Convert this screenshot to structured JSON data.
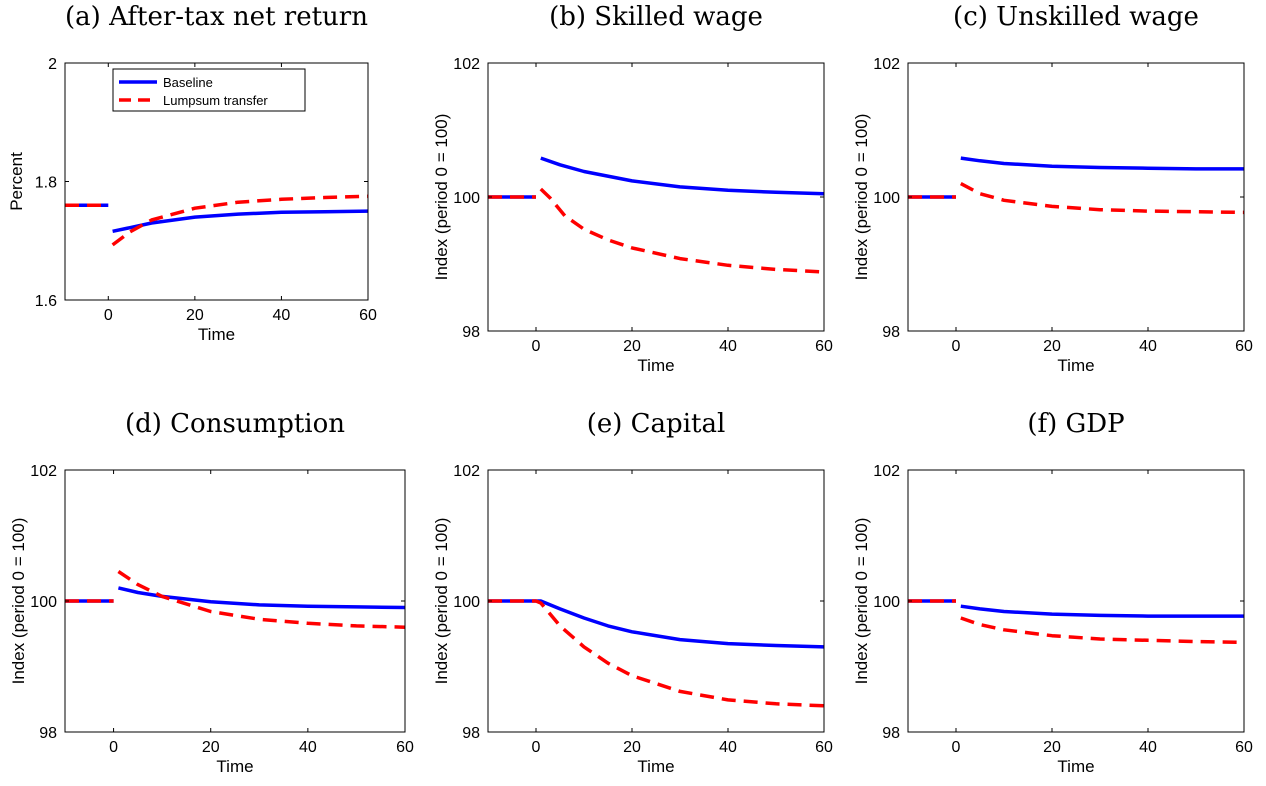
{
  "figure": {
    "legend": {
      "placement": "top-center",
      "panel": 0,
      "entries": [
        "Baseline",
        "Lumpsum transfer"
      ]
    }
  },
  "colors": {
    "baseline": "#0000FF",
    "lumpsum": "#FF0000",
    "axis": "#000000"
  },
  "chart_data": [
    {
      "type": "line",
      "title": "(a) After-tax net return",
      "xlabel": "Time",
      "ylabel": "Percent",
      "xlim": [
        -10,
        60
      ],
      "ylim": [
        1.6,
        2
      ],
      "xticks": [
        0,
        20,
        40,
        60
      ],
      "yticks": [
        1.6,
        1.8,
        2
      ],
      "ytick_labels": [
        "1.6",
        "1.8",
        "2"
      ],
      "grid": false,
      "series": [
        {
          "name": "Baseline",
          "style": "solid",
          "segments": [
            {
              "x": [
                -10,
                0
              ],
              "y": [
                1.76,
                1.76
              ]
            },
            {
              "x": [
                1,
                5,
                10,
                20,
                30,
                40,
                50,
                60
              ],
              "y": [
                1.716,
                1.722,
                1.73,
                1.74,
                1.745,
                1.748,
                1.749,
                1.75
              ]
            }
          ]
        },
        {
          "name": "Lumpsum transfer",
          "style": "dashed",
          "segments": [
            {
              "x": [
                -10,
                0
              ],
              "y": [
                1.76,
                1.76
              ]
            },
            {
              "x": [
                1,
                5,
                10,
                20,
                30,
                40,
                50,
                60
              ],
              "y": [
                1.693,
                1.715,
                1.735,
                1.755,
                1.765,
                1.77,
                1.773,
                1.775
              ]
            }
          ]
        }
      ]
    },
    {
      "type": "line",
      "title": "(b) Skilled wage",
      "xlabel": "Time",
      "ylabel": "Index (period 0 = 100)",
      "xlim": [
        -10,
        60
      ],
      "ylim": [
        98,
        102
      ],
      "xticks": [
        0,
        20,
        40,
        60
      ],
      "yticks": [
        98,
        100,
        102
      ],
      "ytick_labels": [
        "98",
        "100",
        "102"
      ],
      "grid": false,
      "series": [
        {
          "name": "Baseline",
          "style": "solid",
          "segments": [
            {
              "x": [
                -10,
                0
              ],
              "y": [
                100,
                100
              ]
            },
            {
              "x": [
                1,
                5,
                10,
                20,
                30,
                40,
                50,
                60
              ],
              "y": [
                100.58,
                100.48,
                100.38,
                100.24,
                100.15,
                100.1,
                100.07,
                100.05
              ]
            }
          ]
        },
        {
          "name": "Lumpsum transfer",
          "style": "dashed",
          "segments": [
            {
              "x": [
                -10,
                0
              ],
              "y": [
                100,
                100
              ]
            },
            {
              "x": [
                1,
                3,
                6,
                10,
                15,
                20,
                30,
                40,
                50,
                60
              ],
              "y": [
                100.12,
                99.98,
                99.72,
                99.52,
                99.36,
                99.24,
                99.08,
                98.98,
                98.92,
                98.88
              ]
            }
          ]
        }
      ]
    },
    {
      "type": "line",
      "title": "(c) Unskilled wage",
      "xlabel": "Time",
      "ylabel": "Index (period 0 = 100)",
      "xlim": [
        -10,
        60
      ],
      "ylim": [
        98,
        102
      ],
      "xticks": [
        0,
        20,
        40,
        60
      ],
      "yticks": [
        98,
        100,
        102
      ],
      "ytick_labels": [
        "98",
        "100",
        "102"
      ],
      "grid": false,
      "series": [
        {
          "name": "Baseline",
          "style": "solid",
          "segments": [
            {
              "x": [
                -10,
                0
              ],
              "y": [
                100,
                100
              ]
            },
            {
              "x": [
                1,
                5,
                10,
                20,
                30,
                40,
                50,
                60
              ],
              "y": [
                100.58,
                100.54,
                100.5,
                100.46,
                100.44,
                100.43,
                100.42,
                100.42
              ]
            }
          ]
        },
        {
          "name": "Lumpsum transfer",
          "style": "dashed",
          "segments": [
            {
              "x": [
                -10,
                0
              ],
              "y": [
                100,
                100
              ]
            },
            {
              "x": [
                1,
                5,
                10,
                20,
                30,
                40,
                50,
                60
              ],
              "y": [
                100.2,
                100.05,
                99.95,
                99.86,
                99.81,
                99.79,
                99.78,
                99.77
              ]
            }
          ]
        }
      ]
    },
    {
      "type": "line",
      "title": "(d) Consumption",
      "xlabel": "Time",
      "ylabel": "Index (period 0 = 100)",
      "xlim": [
        -10,
        60
      ],
      "ylim": [
        98,
        102
      ],
      "xticks": [
        0,
        20,
        40,
        60
      ],
      "yticks": [
        98,
        100,
        102
      ],
      "ytick_labels": [
        "98",
        "100",
        "102"
      ],
      "grid": false,
      "series": [
        {
          "name": "Baseline",
          "style": "solid",
          "segments": [
            {
              "x": [
                -10,
                0
              ],
              "y": [
                100,
                100
              ]
            },
            {
              "x": [
                1,
                5,
                10,
                20,
                30,
                40,
                50,
                60
              ],
              "y": [
                100.2,
                100.13,
                100.07,
                99.99,
                99.94,
                99.92,
                99.91,
                99.9
              ]
            }
          ]
        },
        {
          "name": "Lumpsum transfer",
          "style": "dashed",
          "segments": [
            {
              "x": [
                -10,
                0
              ],
              "y": [
                100,
                100
              ]
            },
            {
              "x": [
                1,
                5,
                10,
                20,
                30,
                40,
                50,
                60
              ],
              "y": [
                100.45,
                100.25,
                100.07,
                99.84,
                99.72,
                99.66,
                99.62,
                99.6
              ]
            }
          ]
        }
      ]
    },
    {
      "type": "line",
      "title": "(e) Capital",
      "xlabel": "Time",
      "ylabel": "Index (period 0 = 100)",
      "xlim": [
        -10,
        60
      ],
      "ylim": [
        98,
        102
      ],
      "xticks": [
        0,
        20,
        40,
        60
      ],
      "yticks": [
        98,
        100,
        102
      ],
      "ytick_labels": [
        "98",
        "100",
        "102"
      ],
      "grid": false,
      "series": [
        {
          "name": "Baseline",
          "style": "solid",
          "segments": [
            {
              "x": [
                -10,
                0,
                1,
                5,
                10,
                15,
                20,
                30,
                40,
                50,
                60
              ],
              "y": [
                100,
                100,
                100,
                99.88,
                99.74,
                99.62,
                99.53,
                99.41,
                99.35,
                99.32,
                99.3
              ]
            }
          ]
        },
        {
          "name": "Lumpsum transfer",
          "style": "dashed",
          "segments": [
            {
              "x": [
                -10,
                0,
                1,
                5,
                10,
                15,
                20,
                30,
                40,
                50,
                60
              ],
              "y": [
                100,
                100,
                99.97,
                99.62,
                99.3,
                99.05,
                98.86,
                98.62,
                98.49,
                98.43,
                98.4
              ]
            }
          ]
        }
      ]
    },
    {
      "type": "line",
      "title": "(f) GDP",
      "xlabel": "Time",
      "ylabel": "Index (period 0 = 100)",
      "xlim": [
        -10,
        60
      ],
      "ylim": [
        98,
        102
      ],
      "xticks": [
        0,
        20,
        40,
        60
      ],
      "yticks": [
        98,
        100,
        102
      ],
      "ytick_labels": [
        "98",
        "100",
        "102"
      ],
      "grid": false,
      "series": [
        {
          "name": "Baseline",
          "style": "solid",
          "segments": [
            {
              "x": [
                -10,
                0
              ],
              "y": [
                100,
                100
              ]
            },
            {
              "x": [
                1,
                5,
                10,
                20,
                30,
                40,
                50,
                60
              ],
              "y": [
                99.92,
                99.88,
                99.84,
                99.8,
                99.78,
                99.77,
                99.77,
                99.77
              ]
            }
          ]
        },
        {
          "name": "Lumpsum transfer",
          "style": "dashed",
          "segments": [
            {
              "x": [
                -10,
                0
              ],
              "y": [
                100,
                100
              ]
            },
            {
              "x": [
                1,
                5,
                10,
                20,
                30,
                40,
                50,
                60
              ],
              "y": [
                99.74,
                99.64,
                99.56,
                99.47,
                99.42,
                99.4,
                99.38,
                99.37
              ]
            }
          ]
        }
      ]
    }
  ]
}
